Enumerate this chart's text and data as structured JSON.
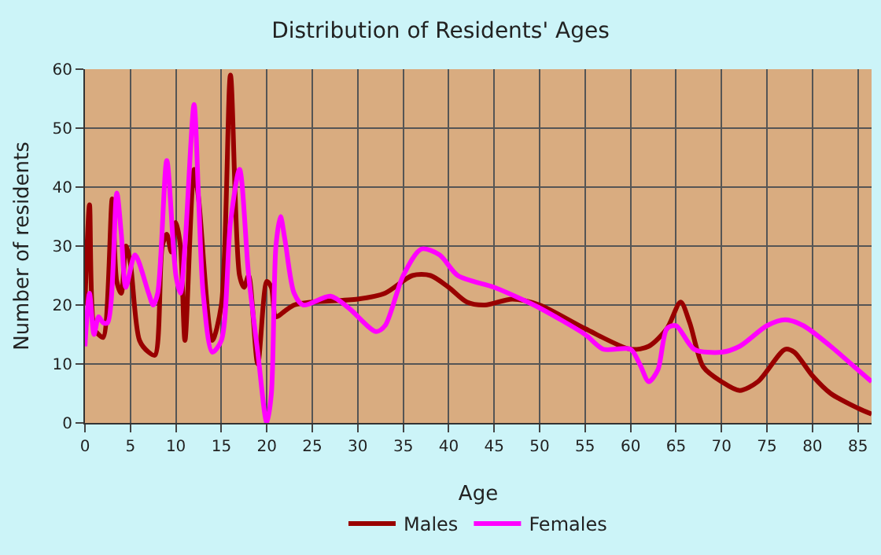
{
  "chart_data": {
    "type": "line",
    "title": "Distribution of Residents' Ages",
    "xlabel": "Age",
    "ylabel": "Number of residents",
    "xlim": [
      0,
      86.5
    ],
    "xticks": [
      0,
      5,
      10,
      15,
      20,
      25,
      30,
      35,
      40,
      45,
      50,
      55,
      60,
      65,
      70,
      75,
      80,
      85
    ],
    "ylim": [
      0,
      60
    ],
    "yticks": [
      0,
      10,
      20,
      30,
      40,
      50,
      60
    ],
    "grid": true,
    "legend": "bottom",
    "marker": "none",
    "line_style": "solid",
    "series": [
      {
        "name": "Males",
        "color": "#990000",
        "x": [
          0,
          0.5,
          1,
          1.5,
          2,
          3,
          3.5,
          4,
          4.5,
          5,
          6,
          7,
          7.7,
          8.5,
          9,
          9.5,
          10,
          10.5,
          11,
          12,
          12.5,
          14,
          15,
          16,
          17,
          17.5,
          18,
          19,
          20,
          20.5,
          21,
          22,
          23,
          25,
          30,
          33,
          36,
          38,
          40,
          42,
          44,
          47,
          50,
          55,
          60,
          62,
          64,
          65.5,
          66.5,
          68,
          70,
          72,
          74,
          77,
          78,
          80,
          82,
          85,
          86.5
        ],
        "values": [
          20,
          37,
          16,
          15,
          14.5,
          38,
          24,
          22,
          30,
          27,
          14,
          12,
          11.5,
          30,
          32,
          29,
          34,
          30,
          14,
          43,
          38,
          14,
          20,
          59,
          25,
          23,
          25,
          10,
          24,
          23,
          18,
          19,
          20,
          20.5,
          21,
          22,
          25,
          25,
          23,
          20.5,
          20,
          21,
          20,
          16,
          12.5,
          13,
          16,
          20.5,
          17,
          9.5,
          7,
          5.5,
          7,
          12.5,
          12,
          8,
          5,
          2.5,
          1.5
        ]
      },
      {
        "name": "Females",
        "color": "#ff00ff",
        "x": [
          0,
          0.5,
          1,
          1.5,
          2,
          2.5,
          3.5,
          4,
          4.5,
          5.5,
          7,
          7.5,
          8,
          9,
          10,
          10.5,
          11,
          12,
          12.5,
          13,
          14,
          15,
          16,
          17,
          18,
          19,
          20,
          20.5,
          21,
          21.5,
          22,
          23,
          24,
          27,
          29,
          32,
          33,
          35,
          37,
          39,
          41,
          45,
          48,
          50,
          55,
          57,
          60,
          61,
          62,
          63,
          64,
          65,
          67,
          70,
          72,
          75,
          77,
          79,
          82,
          85,
          86.5
        ],
        "values": [
          13,
          22,
          15,
          18,
          17,
          17,
          39,
          32,
          23,
          28.5,
          22,
          20,
          22,
          44.5,
          25,
          22,
          30,
          54,
          38,
          22,
          12,
          14,
          34,
          43,
          25,
          12,
          0,
          5,
          30,
          35,
          31,
          22,
          20,
          21.5,
          19.5,
          15.5,
          16.5,
          25,
          29.5,
          28.5,
          25,
          23,
          21,
          19.5,
          15,
          12.5,
          12.5,
          10,
          7,
          9,
          16,
          16.5,
          12.5,
          12,
          13,
          16.5,
          17.5,
          16.5,
          13,
          9,
          7
        ]
      }
    ]
  }
}
